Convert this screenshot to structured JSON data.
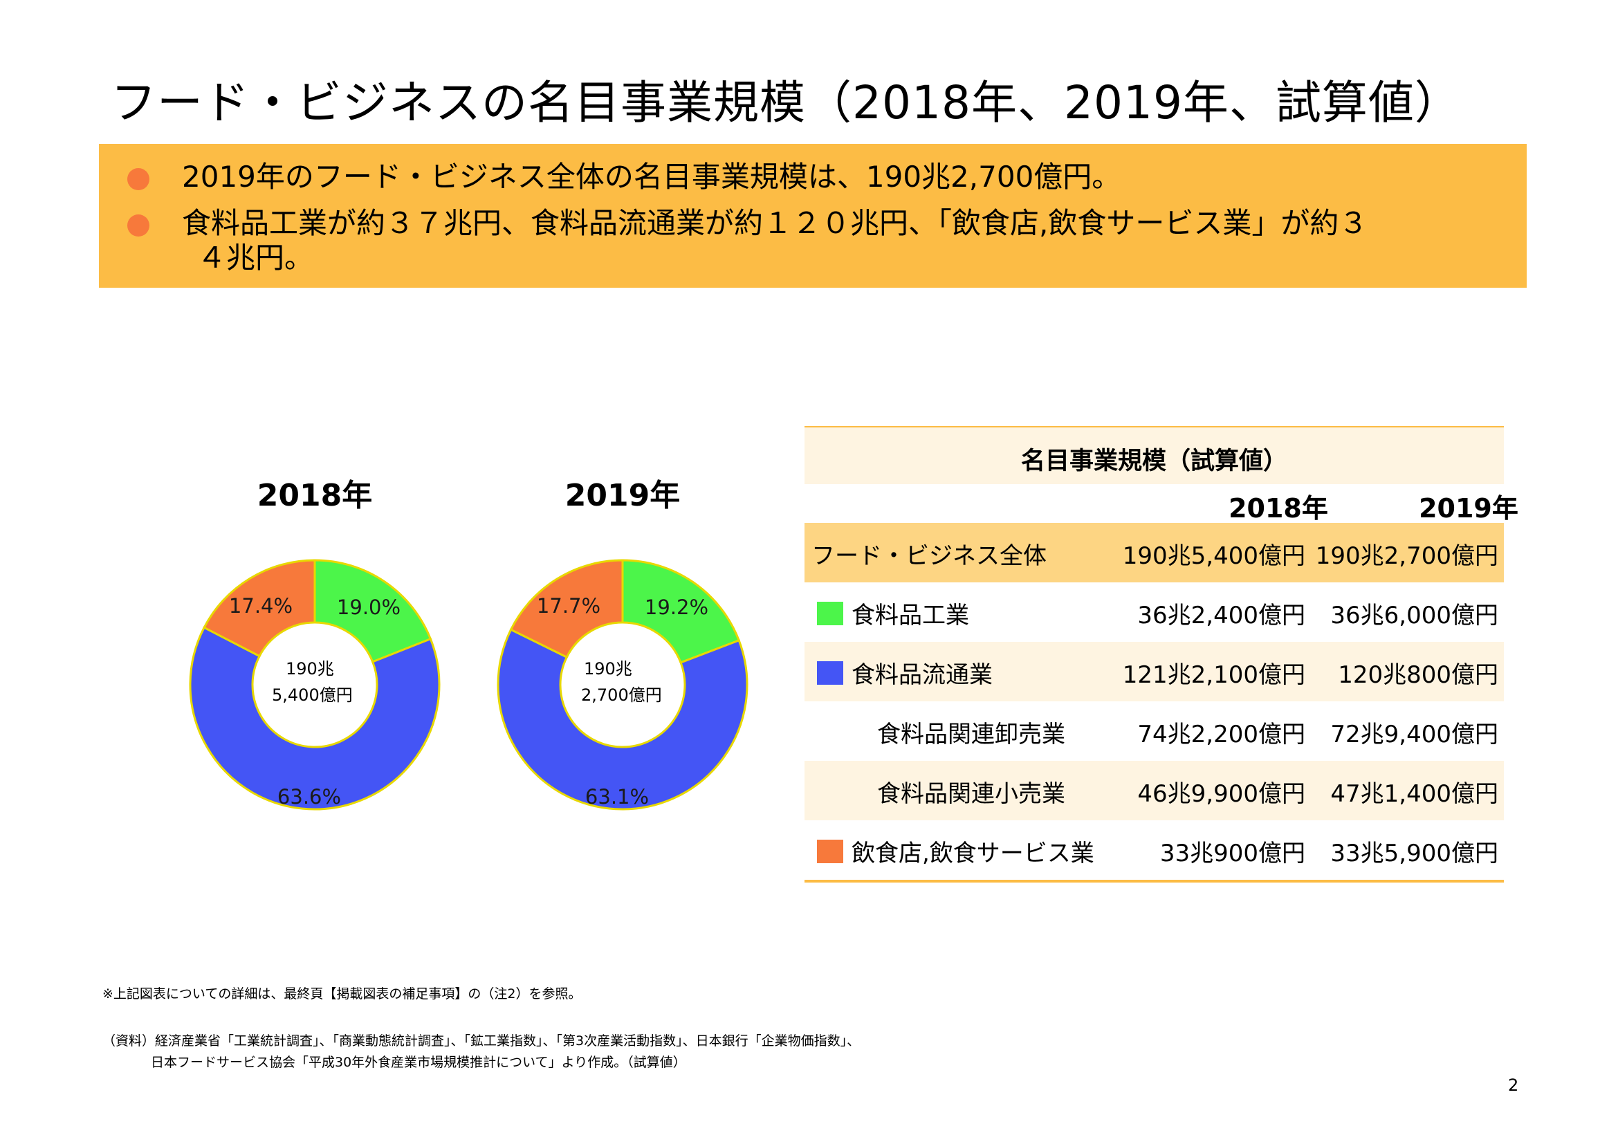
{
  "title": "フード・ビジネスの名目事業規模（2018年、2019年、試算値）",
  "summary": [
    "2019年のフード・ビジネス全体の名目事業規模は、190兆2,700億円。",
    "食料品工業が約３７兆円、食料品流通業が約１２０兆円、「飲食店,飲食サービス業」が約３",
    "４兆円。"
  ],
  "colors": {
    "accent": "#fcbc45",
    "bullet": "#f7793b",
    "green": "#4cf54a",
    "blue": "#4455f5",
    "orange": "#f7793b",
    "outline": "#e8d800"
  },
  "chart_data": [
    {
      "type": "pie",
      "title": "2018年",
      "center_label": [
        "190兆",
        "5,400億円"
      ],
      "categories": [
        "食料品工業",
        "食料品流通業",
        "飲食店,飲食サービス業"
      ],
      "values": [
        19.0,
        63.6,
        17.4
      ],
      "labels": [
        "19.0%",
        "63.6%",
        "17.4%"
      ],
      "colors": [
        "#4cf54a",
        "#4455f5",
        "#f7793b"
      ]
    },
    {
      "type": "pie",
      "title": "2019年",
      "center_label": [
        "190兆",
        "2,700億円"
      ],
      "categories": [
        "食料品工業",
        "食料品流通業",
        "飲食店,飲食サービス業"
      ],
      "values": [
        19.2,
        63.1,
        17.7
      ],
      "labels": [
        "19.2%",
        "63.1%",
        "17.7%"
      ],
      "colors": [
        "#4cf54a",
        "#4455f5",
        "#f7793b"
      ]
    }
  ],
  "table": {
    "caption": "名目事業規模（試算値）",
    "years": [
      "2018年",
      "2019年"
    ],
    "rows": [
      {
        "label": "フード・ビジネス全体",
        "v2018": "190兆5,400億円",
        "v2019": "190兆2,700億円"
      },
      {
        "label": "食料品工業",
        "v2018": "36兆2,400億円",
        "v2019": "36兆6,000億円",
        "swatch": "#4cf54a"
      },
      {
        "label": "食料品流通業",
        "v2018": "121兆2,100億円",
        "v2019": "120兆800億円",
        "swatch": "#4455f5"
      },
      {
        "label": "食料品関連卸売業",
        "v2018": "74兆2,200億円",
        "v2019": "72兆9,400億円"
      },
      {
        "label": "食料品関連小売業",
        "v2018": "46兆9,900億円",
        "v2019": "47兆1,400億円"
      },
      {
        "label": "飲食店,飲食サービス業",
        "v2018": "33兆900億円",
        "v2019": "33兆5,900億円",
        "swatch": "#f7793b"
      }
    ]
  },
  "note": "※上記図表についての詳細は、最終頁【掲載図表の補足事項】の（注2）を参照。",
  "source": [
    "（資料）経済産業省「工業統計調査」、「商業動態統計調査」、「鉱工業指数」、「第3次産業活動指数」、日本銀行「企業物価指数」、",
    "日本フードサービス協会「平成30年外食産業市場規模推計について」より作成。（試算値）"
  ],
  "page_number": "2"
}
